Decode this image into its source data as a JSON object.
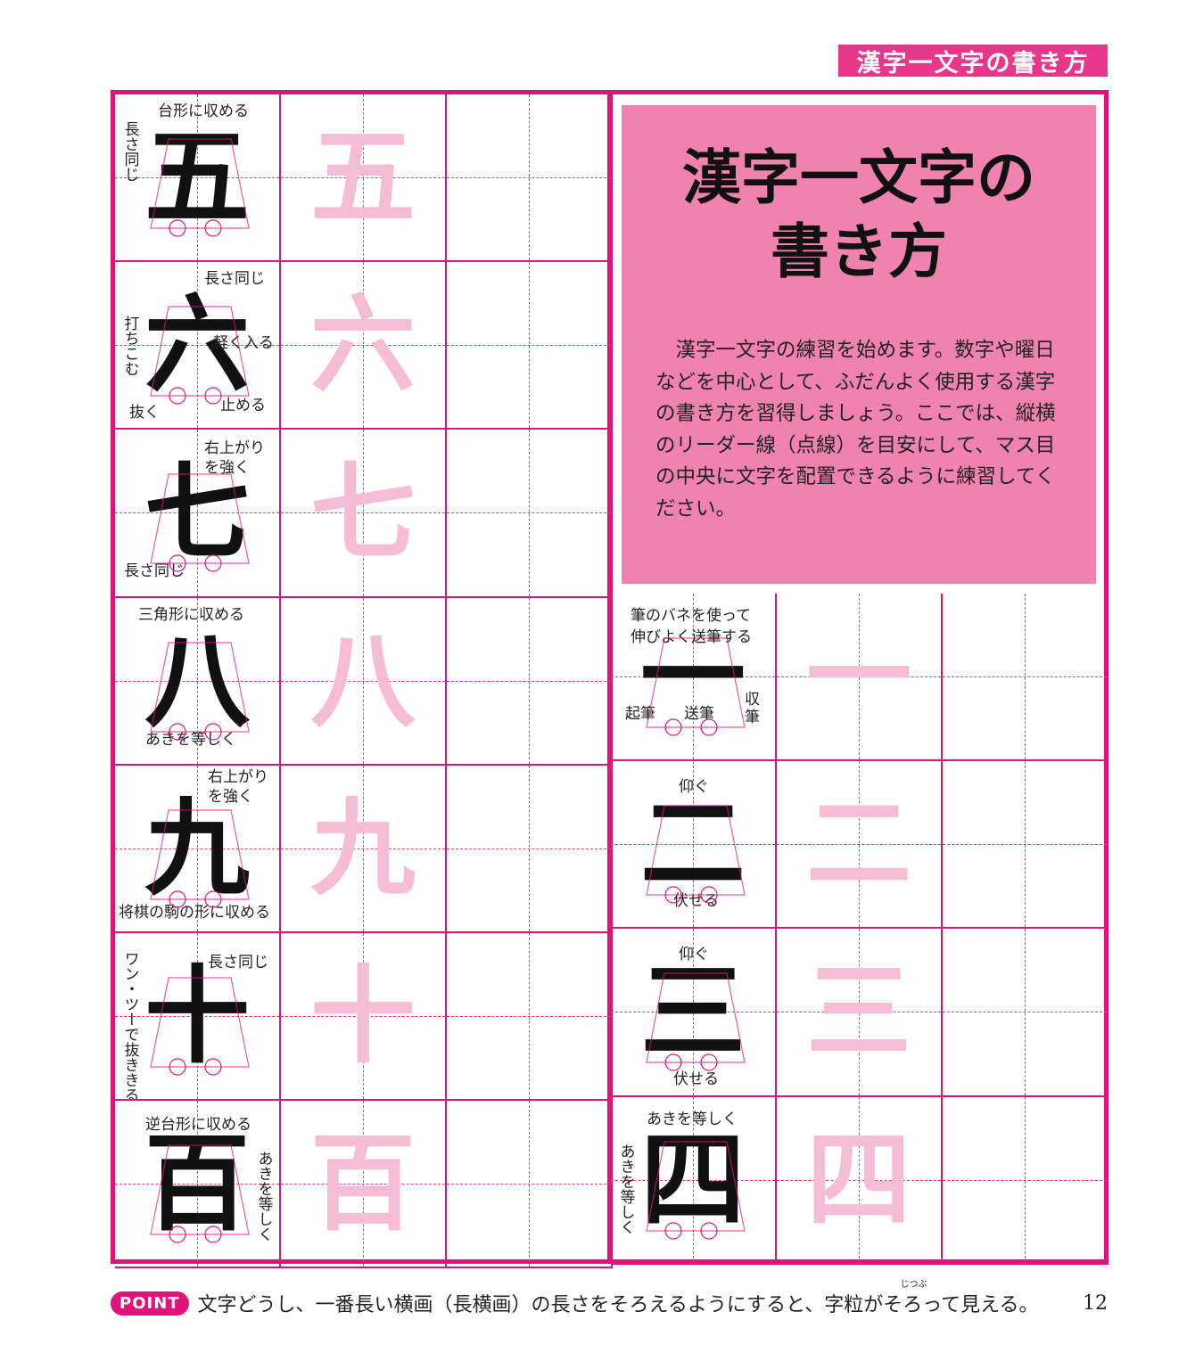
{
  "header": {
    "tag": "漢字一文字の書き方"
  },
  "left_rows": [
    {
      "char": "五",
      "notes": [
        "台形に収める",
        "長さ同じ"
      ]
    },
    {
      "char": "六",
      "notes": [
        "長さ同じ",
        "打ちこむ",
        "軽く入る",
        "抜く",
        "止める"
      ]
    },
    {
      "char": "七",
      "notes": [
        "右上がり",
        "を強く",
        "長さ同じ"
      ]
    },
    {
      "char": "八",
      "notes": [
        "三角形に収める",
        "あきを等しく"
      ]
    },
    {
      "char": "九",
      "notes": [
        "右上がり",
        "を強く",
        "将棋の駒の形に収める"
      ]
    },
    {
      "char": "十",
      "notes": [
        "ワン・ツーで抜ききる",
        "長さ同じ"
      ]
    },
    {
      "char": "百",
      "notes": [
        "逆台形に収める",
        "あきを等しく"
      ]
    }
  ],
  "title_box": {
    "title_line1": "漢字一文字の",
    "title_line2": "書き方",
    "intro": "漢字一文字の練習を始めます。数字や曜日などを中心として、ふだんよく使用する漢字の書き方を習得しましょう。ここでは、縦横のリーダー線（点線）を目安にして、マス目の中央に文字を配置できるように練習してください。"
  },
  "right_rows": [
    {
      "char": "一",
      "notes": [
        "筆のバネを使って",
        "伸びよく送筆する",
        "起筆",
        "送筆",
        "収",
        "筆"
      ]
    },
    {
      "char": "二",
      "notes": [
        "仰ぐ",
        "伏せる"
      ]
    },
    {
      "char": "三",
      "notes": [
        "仰ぐ",
        "伏せる"
      ]
    },
    {
      "char": "四",
      "notes": [
        "あきを等しく",
        "あきを等しく"
      ]
    }
  ],
  "footer": {
    "badge": "POINT",
    "text": "文字どうし、一番長い横画（長横画）の長さをそろえるようにすると、字粒がそろって見える。",
    "ruby": "じつぶ",
    "page": "12"
  },
  "colors": {
    "accent": "#e2127d",
    "title_bg": "#ef82ae",
    "trace": "#f5bcd6"
  }
}
